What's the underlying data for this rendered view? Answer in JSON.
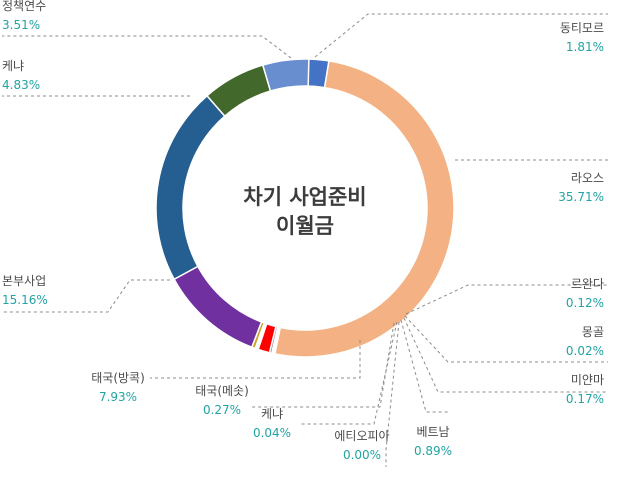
{
  "chart_data": {
    "type": "pie",
    "style": "donut",
    "title_lines": [
      "차기 사업준비",
      "이월금"
    ],
    "series": [
      {
        "name": "동티모르",
        "label": "1.81%",
        "value": 1.81,
        "color": "#4472c4"
      },
      {
        "name": "라오스",
        "label": "35.71%",
        "value": 35.71,
        "color": "#f4b183"
      },
      {
        "name": "르완다",
        "label": "0.12%",
        "value": 0.12,
        "color": "#5b9bd5"
      },
      {
        "name": "몽골",
        "label": "0.02%",
        "value": 0.02,
        "color": "#70ad47"
      },
      {
        "name": "미얀마",
        "label": "0.17%",
        "value": 0.17,
        "color": "#7b7b7b"
      },
      {
        "name": "베트남",
        "label": "0.89%",
        "value": 0.89,
        "color": "#ff0000"
      },
      {
        "name": "에티오피아",
        "label": "0.00%",
        "value": 0.0,
        "color": "#ffc000"
      },
      {
        "name": "케냐",
        "label": "0.04%",
        "value": 0.04,
        "color": "#a5a5a5"
      },
      {
        "name": "태국(메솟)",
        "label": "0.27%",
        "value": 0.27,
        "color": "#c9a227"
      },
      {
        "name": "태국(방콕)",
        "label": "7.93%",
        "value": 7.93,
        "color": "#7030a0"
      },
      {
        "name": "본부사업",
        "label": "15.16%",
        "value": 15.16,
        "color": "#255e91"
      },
      {
        "name": "케냐",
        "label": "4.83%",
        "value": 4.83,
        "color": "#43682b"
      },
      {
        "name": "정책연수",
        "label": "3.51%",
        "value": 3.51,
        "color": "#698ed0"
      }
    ]
  }
}
